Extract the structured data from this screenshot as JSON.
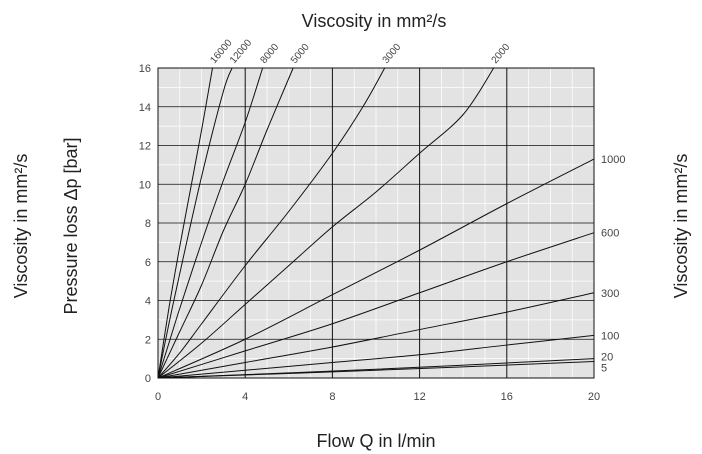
{
  "chart_data": {
    "type": "line",
    "xlabel": "Flow Q in l/min",
    "ylabel": "Pressure loss Δp [bar]",
    "top_label": "Viscosity in mm²/s",
    "left_side_label": "Viscosity in mm²/s",
    "right_side_label": "Viscosity in mm²/s",
    "xlim": [
      0,
      20
    ],
    "ylim": [
      0,
      16
    ],
    "x_ticks": [
      "0",
      "4",
      "8",
      "12",
      "16",
      "20"
    ],
    "y_ticks": [
      "0",
      "2",
      "4",
      "6",
      "8",
      "10",
      "12",
      "14",
      "16"
    ],
    "grid": true,
    "colors": {
      "plot_background": "#e3e3e3",
      "line": "#111111",
      "grid": "#111111",
      "minor_grid": "#ffffff"
    },
    "series": [
      {
        "name": "16000",
        "label_position": "top",
        "points": [
          [
            0,
            0
          ],
          [
            0.5,
            3.6
          ],
          [
            1,
            6.8
          ],
          [
            1.5,
            9.8
          ],
          [
            2,
            12.8
          ],
          [
            2.5,
            16
          ]
        ]
      },
      {
        "name": "12000",
        "label_position": "top",
        "points": [
          [
            0,
            0
          ],
          [
            0.5,
            2.8
          ],
          [
            1,
            5.4
          ],
          [
            2,
            10.4
          ],
          [
            3,
            14.8
          ],
          [
            3.4,
            16
          ]
        ]
      },
      {
        "name": "8000",
        "label_position": "top",
        "points": [
          [
            0,
            0
          ],
          [
            0.5,
            1.8
          ],
          [
            1,
            3.6
          ],
          [
            2,
            7.0
          ],
          [
            3,
            10.2
          ],
          [
            4,
            13.2
          ],
          [
            4.8,
            16
          ]
        ]
      },
      {
        "name": "5000",
        "label_position": "top",
        "points": [
          [
            0,
            0
          ],
          [
            1,
            2.4
          ],
          [
            2,
            4.8
          ],
          [
            3,
            7.6
          ],
          [
            4,
            10.0
          ],
          [
            5,
            12.8
          ],
          [
            6.2,
            16
          ]
        ]
      },
      {
        "name": "3000",
        "label_position": "top",
        "points": [
          [
            0,
            0
          ],
          [
            1,
            1.3
          ],
          [
            2,
            2.8
          ],
          [
            4,
            5.8
          ],
          [
            6,
            8.6
          ],
          [
            8,
            11.6
          ],
          [
            9.4,
            14.0
          ],
          [
            10.4,
            16
          ]
        ]
      },
      {
        "name": "2000",
        "label_position": "top",
        "points": [
          [
            0,
            0
          ],
          [
            2,
            1.8
          ],
          [
            4,
            3.8
          ],
          [
            6,
            5.8
          ],
          [
            8,
            7.8
          ],
          [
            10,
            9.6
          ],
          [
            12,
            11.6
          ],
          [
            14,
            13.6
          ],
          [
            15.4,
            16
          ]
        ]
      },
      {
        "name": "1000",
        "label_position": "right",
        "points": [
          [
            0,
            0
          ],
          [
            4,
            2.0
          ],
          [
            8,
            4.3
          ],
          [
            12,
            6.6
          ],
          [
            16,
            9.0
          ],
          [
            20,
            11.3
          ]
        ]
      },
      {
        "name": "600",
        "label_position": "right",
        "points": [
          [
            0,
            0
          ],
          [
            4,
            1.4
          ],
          [
            8,
            2.8
          ],
          [
            12,
            4.4
          ],
          [
            16,
            6.0
          ],
          [
            20,
            7.5
          ]
        ]
      },
      {
        "name": "300",
        "label_position": "right",
        "points": [
          [
            0,
            0
          ],
          [
            4,
            0.8
          ],
          [
            8,
            1.6
          ],
          [
            12,
            2.5
          ],
          [
            16,
            3.4
          ],
          [
            20,
            4.4
          ]
        ]
      },
      {
        "name": "100",
        "label_position": "right",
        "points": [
          [
            0,
            0
          ],
          [
            4,
            0.4
          ],
          [
            8,
            0.8
          ],
          [
            12,
            1.2
          ],
          [
            16,
            1.7
          ],
          [
            20,
            2.2
          ]
        ]
      },
      {
        "name": "20",
        "label_position": "right",
        "points": [
          [
            0,
            0
          ],
          [
            10,
            0.45
          ],
          [
            20,
            1.0
          ]
        ]
      },
      {
        "name": "5",
        "label_position": "right",
        "points": [
          [
            0,
            0
          ],
          [
            10,
            0.4
          ],
          [
            20,
            0.85
          ]
        ]
      }
    ]
  }
}
